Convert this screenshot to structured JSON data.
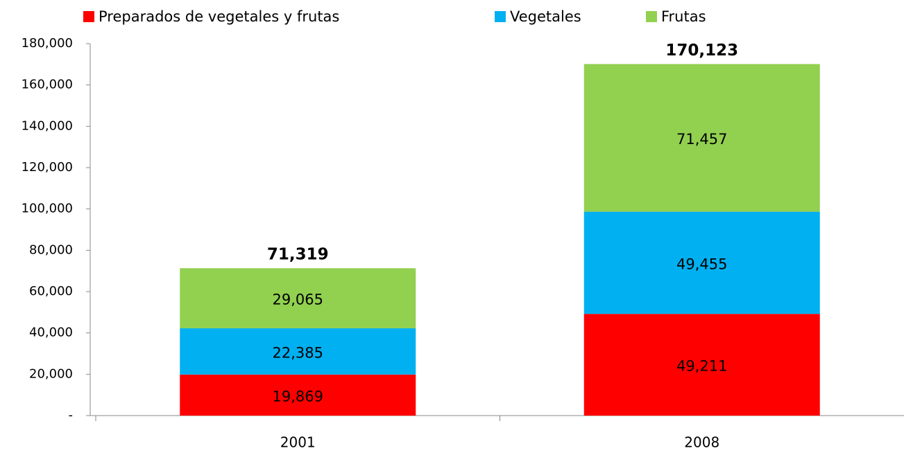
{
  "chart_data": {
    "type": "stacked_bar",
    "categories": [
      "2001",
      "2008"
    ],
    "series": [
      {
        "name": "Preparados de vegetales y frutas",
        "color": "#ff0000",
        "values": [
          19869,
          49211
        ],
        "value_labels": [
          "19,869",
          "49,211"
        ]
      },
      {
        "name": "Vegetales",
        "color": "#00b0f0",
        "values": [
          22385,
          49455
        ],
        "value_labels": [
          "22,385",
          "49,455"
        ]
      },
      {
        "name": "Frutas",
        "color": "#92d050",
        "values": [
          29065,
          71457
        ],
        "value_labels": [
          "29,065",
          "71,457"
        ]
      }
    ],
    "totals": {
      "values": [
        71319,
        170123
      ],
      "value_labels": [
        "71,319",
        "170,123"
      ]
    },
    "ylim": [
      0,
      180000
    ],
    "yticks": [
      {
        "value": 0,
        "label": "-"
      },
      {
        "value": 20000,
        "label": "20,000"
      },
      {
        "value": 40000,
        "label": "40,000"
      },
      {
        "value": 60000,
        "label": "60,000"
      },
      {
        "value": 80000,
        "label": "80,000"
      },
      {
        "value": 100000,
        "label": "100,000"
      },
      {
        "value": 120000,
        "label": "120,000"
      },
      {
        "value": 140000,
        "label": "140,000"
      },
      {
        "value": 160000,
        "label": "160,000"
      },
      {
        "value": 180000,
        "label": "180,000"
      }
    ],
    "legend": "top"
  }
}
